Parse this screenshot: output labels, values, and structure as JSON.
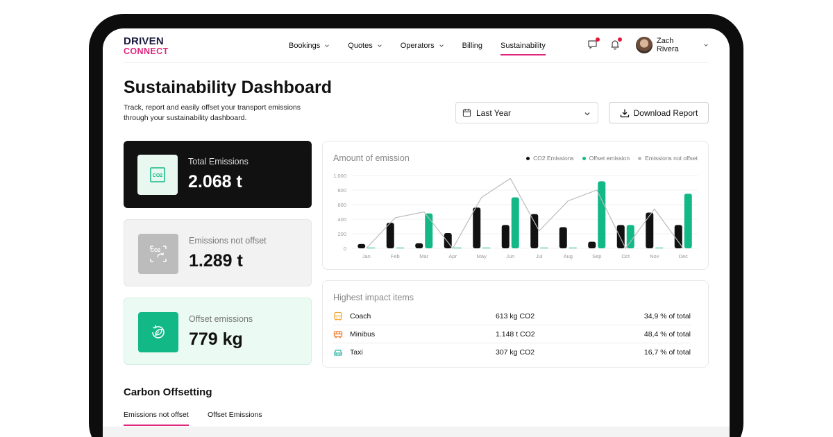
{
  "brand": {
    "logo_top": "DRIVEN",
    "logo_bottom": "CONNECT",
    "accent": "#e0267d"
  },
  "nav": {
    "items": [
      {
        "label": "Bookings",
        "has_menu": true
      },
      {
        "label": "Quotes",
        "has_menu": true
      },
      {
        "label": "Operators",
        "has_menu": true
      },
      {
        "label": "Billing",
        "has_menu": false
      },
      {
        "label": "Sustainability",
        "has_menu": false,
        "active": true
      }
    ]
  },
  "header": {
    "icons": [
      "chat-icon",
      "bell-icon"
    ],
    "user_name": "Zach Rivera"
  },
  "page": {
    "title": "Sustainability Dashboard",
    "subtitle": "Track, report and easily offset your transport emissions through your sustainability dashboard."
  },
  "controls": {
    "date_range": "Last Year",
    "download_label": "Download Report"
  },
  "stats": [
    {
      "label": "Total Emissions",
      "value": "2.068 t",
      "icon": "co2-icon"
    },
    {
      "label": "Emissions not offset",
      "value": "1.289 t",
      "icon": "co2-offset-icon"
    },
    {
      "label": "Offset emissions",
      "value": "779 kg",
      "icon": "leaf-cycle-icon"
    }
  ],
  "chart_data": {
    "type": "bar",
    "title": "Amount of emission",
    "categories": [
      "Jan",
      "Feb",
      "Mar",
      "Apr",
      "May",
      "Jun",
      "Jul",
      "Aug",
      "Sep",
      "Oct",
      "Nov",
      "Dec"
    ],
    "y_ticks": [
      "0",
      "200",
      "400",
      "600",
      "800",
      "1,000"
    ],
    "ylim": [
      0,
      1000
    ],
    "series": [
      {
        "name": "CO2 Emissions",
        "kind": "bar",
        "color": "#111111",
        "values": [
          60,
          350,
          70,
          210,
          560,
          320,
          470,
          290,
          90,
          320,
          490,
          320
        ]
      },
      {
        "name": "Offset emission",
        "kind": "bar",
        "color": "#12b886",
        "values": [
          0,
          0,
          480,
          0,
          0,
          700,
          0,
          0,
          920,
          320,
          0,
          750
        ]
      },
      {
        "name": "Emissions not offset",
        "kind": "line",
        "color": "#bbbbbb",
        "values": [
          0,
          420,
          500,
          0,
          700,
          960,
          240,
          650,
          800,
          0,
          540,
          0
        ]
      }
    ],
    "legend_position": "top-right",
    "grid": true
  },
  "impact": {
    "title": "Highest impact items",
    "rows": [
      {
        "name": "Coach",
        "amount": "613 kg CO2",
        "pct": "34,9 % of total",
        "icon": "bus-icon",
        "color": "#f2a93b"
      },
      {
        "name": "Minibus",
        "amount": "1.148 t CO2",
        "pct": "48,4 % of total",
        "icon": "minibus-icon",
        "color": "#ef7d2d"
      },
      {
        "name": "Taxi",
        "amount": "307 kg CO2",
        "pct": "16,7 % of total",
        "icon": "car-icon",
        "color": "#2fb9a4"
      }
    ]
  },
  "offsetting": {
    "title": "Carbon Offsetting",
    "tabs": [
      {
        "label": "Emissions not offset",
        "active": true
      },
      {
        "label": "Offset Emissions",
        "active": false
      }
    ]
  }
}
